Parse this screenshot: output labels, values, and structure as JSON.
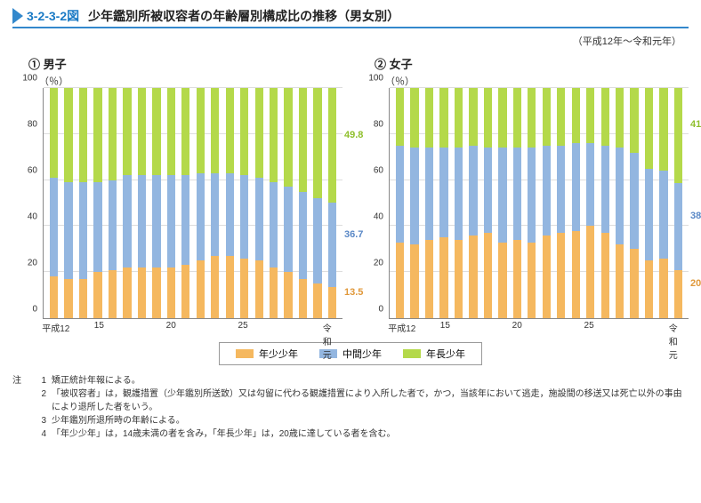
{
  "header": {
    "figure_number": "3-2-3-2図",
    "title": "少年鑑別所被収容者の年齢層別構成比の推移（男女別）",
    "period": "（平成12年～令和元年）"
  },
  "chart_common": {
    "y_label": "（％）",
    "y_ticks": [
      0,
      20,
      40,
      60,
      80,
      100
    ],
    "x_ticks_pos": [
      0,
      3,
      8,
      13,
      19
    ],
    "x_ticks_label": [
      "平成12",
      "15",
      "20",
      "25",
      "令和元"
    ],
    "colors": {
      "younger": "#f5b85f",
      "middle": "#93b6e0",
      "older": "#b4d94a"
    }
  },
  "charts": [
    {
      "label": "① 男子",
      "end_values": {
        "older": 49.8,
        "middle": 36.7,
        "younger": 13.5
      },
      "end_colors": {
        "older": "#8fbf2c",
        "middle": "#5a88c6",
        "younger": "#e0983a"
      },
      "series": [
        {
          "younger": 18,
          "middle": 43,
          "older": 39
        },
        {
          "younger": 17,
          "middle": 42,
          "older": 41
        },
        {
          "younger": 17,
          "middle": 42,
          "older": 41
        },
        {
          "younger": 20,
          "middle": 39,
          "older": 41
        },
        {
          "younger": 21,
          "middle": 39,
          "older": 40
        },
        {
          "younger": 22,
          "middle": 40,
          "older": 38
        },
        {
          "younger": 22,
          "middle": 40,
          "older": 38
        },
        {
          "younger": 22,
          "middle": 40,
          "older": 38
        },
        {
          "younger": 22,
          "middle": 40,
          "older": 38
        },
        {
          "younger": 23,
          "middle": 39,
          "older": 38
        },
        {
          "younger": 25,
          "middle": 38,
          "older": 37
        },
        {
          "younger": 27,
          "middle": 36,
          "older": 37
        },
        {
          "younger": 27,
          "middle": 36,
          "older": 37
        },
        {
          "younger": 26,
          "middle": 36,
          "older": 38
        },
        {
          "younger": 25,
          "middle": 36,
          "older": 39
        },
        {
          "younger": 22,
          "middle": 37,
          "older": 41
        },
        {
          "younger": 20,
          "middle": 37,
          "older": 43
        },
        {
          "younger": 17,
          "middle": 38,
          "older": 45
        },
        {
          "younger": 15,
          "middle": 37,
          "older": 48
        },
        {
          "younger": 13.5,
          "middle": 36.7,
          "older": 49.8
        }
      ]
    },
    {
      "label": "② 女子",
      "end_values": {
        "older": 41.2,
        "middle": 38.0,
        "younger": 20.8
      },
      "end_colors": {
        "older": "#8fbf2c",
        "middle": "#5a88c6",
        "younger": "#e0983a"
      },
      "series": [
        {
          "younger": 33,
          "middle": 42,
          "older": 25
        },
        {
          "younger": 32,
          "middle": 42,
          "older": 26
        },
        {
          "younger": 34,
          "middle": 40,
          "older": 26
        },
        {
          "younger": 35,
          "middle": 39,
          "older": 26
        },
        {
          "younger": 34,
          "middle": 40,
          "older": 26
        },
        {
          "younger": 36,
          "middle": 39,
          "older": 25
        },
        {
          "younger": 37,
          "middle": 37,
          "older": 26
        },
        {
          "younger": 33,
          "middle": 41,
          "older": 26
        },
        {
          "younger": 34,
          "middle": 40,
          "older": 26
        },
        {
          "younger": 33,
          "middle": 41,
          "older": 26
        },
        {
          "younger": 36,
          "middle": 39,
          "older": 25
        },
        {
          "younger": 37,
          "middle": 38,
          "older": 25
        },
        {
          "younger": 38,
          "middle": 38,
          "older": 24
        },
        {
          "younger": 40,
          "middle": 36,
          "older": 24
        },
        {
          "younger": 37,
          "middle": 38,
          "older": 25
        },
        {
          "younger": 32,
          "middle": 42,
          "older": 26
        },
        {
          "younger": 30,
          "middle": 42,
          "older": 28
        },
        {
          "younger": 25,
          "middle": 40,
          "older": 35
        },
        {
          "younger": 26,
          "middle": 38,
          "older": 36
        },
        {
          "younger": 20.8,
          "middle": 38.0,
          "older": 41.2
        }
      ]
    }
  ],
  "legend": {
    "items": [
      {
        "label": "年少少年",
        "color_key": "younger"
      },
      {
        "label": "中間少年",
        "color_key": "middle"
      },
      {
        "label": "年長少年",
        "color_key": "older"
      }
    ]
  },
  "notes": {
    "head": "注",
    "items": [
      "矯正統計年報による。",
      "「被収容者」は，観護措置（少年鑑別所送致）又は勾留に代わる観護措置により入所した者で，かつ，当該年において逃走，施設間の移送又は死亡以外の事由により退所した者をいう。",
      "少年鑑別所退所時の年齢による。",
      "「年少少年」は，14歳未満の者を含み，「年長少年」は，20歳に達している者を含む。"
    ]
  }
}
